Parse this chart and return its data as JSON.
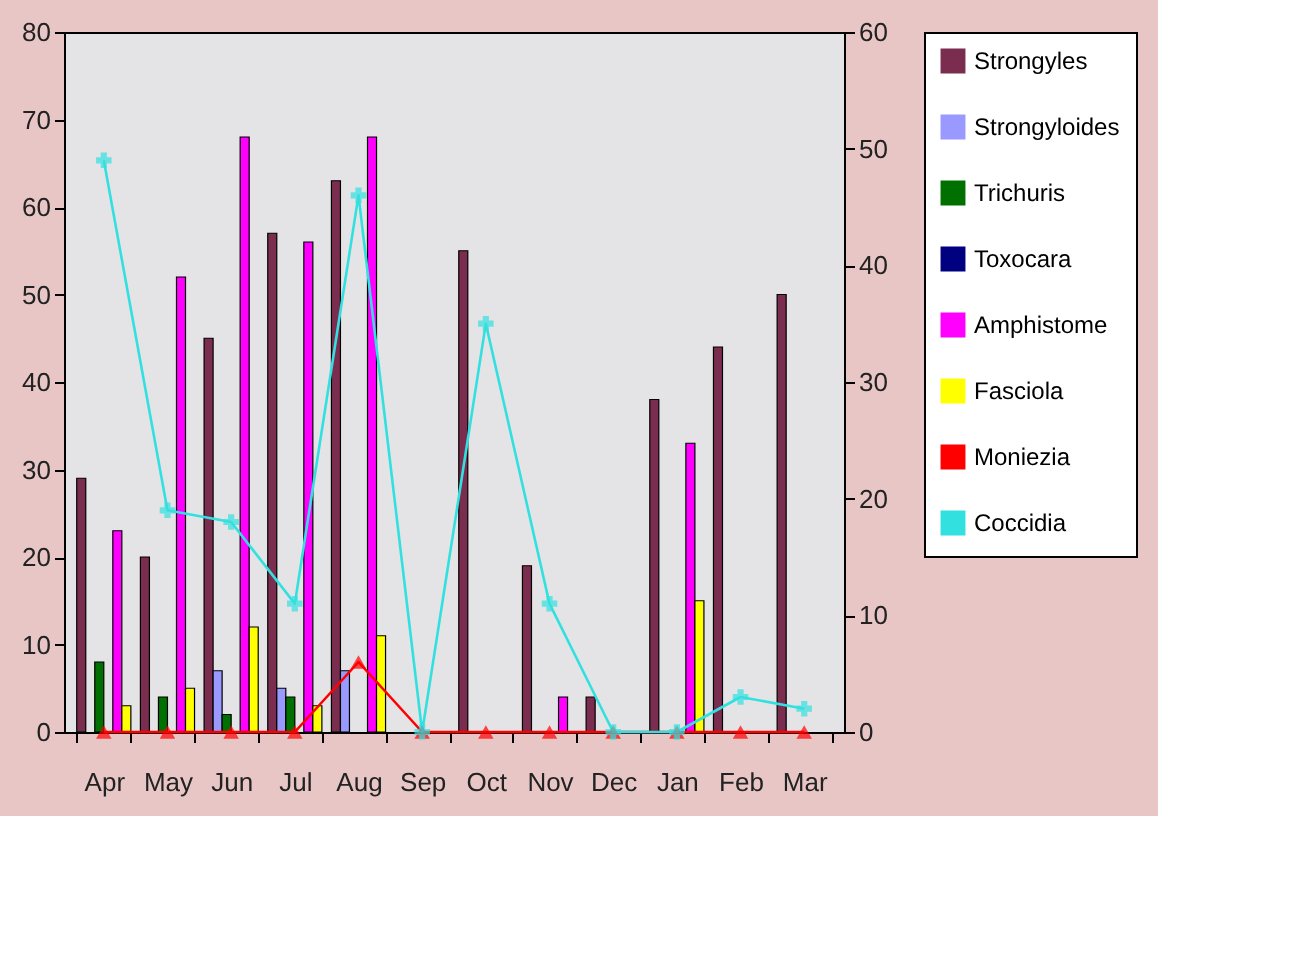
{
  "chart_data": {
    "type": "bar",
    "categories": [
      "Apr",
      "May",
      "Jun",
      "Jul",
      "Aug",
      "Sep",
      "Oct",
      "Nov",
      "Dec",
      "Jan",
      "Feb",
      "Mar"
    ],
    "series": [
      {
        "name": "Strongyles",
        "color": "#7b2d4f",
        "values": [
          29,
          20,
          45,
          57,
          63,
          0,
          55,
          19,
          4,
          38,
          44,
          50
        ]
      },
      {
        "name": "Strongyloides",
        "color": "#9999ff",
        "values": [
          0,
          0,
          7,
          5,
          7,
          0,
          0,
          0,
          0,
          0,
          0,
          0
        ]
      },
      {
        "name": "Trichuris",
        "color": "#007000",
        "values": [
          8,
          4,
          2,
          4,
          0,
          0,
          0,
          0,
          0,
          0,
          0,
          0
        ]
      },
      {
        "name": "Toxocara",
        "color": "#000080",
        "values": [
          0,
          0,
          0,
          0,
          0,
          0,
          0,
          0,
          0,
          0,
          0,
          0
        ]
      },
      {
        "name": "Amphistome",
        "color": "#ff00ff",
        "values": [
          23,
          52,
          68,
          56,
          68,
          0,
          0,
          4,
          0,
          33,
          0,
          0
        ]
      },
      {
        "name": "Fasciola",
        "color": "#ffff00",
        "values": [
          3,
          5,
          12,
          3,
          11,
          0,
          0,
          0,
          0,
          15,
          0,
          0
        ]
      },
      {
        "name": "Moniezia",
        "color": "#ff0000",
        "type": "line",
        "axis": "y2",
        "marker": "triangle",
        "values": [
          0,
          0,
          0,
          0,
          6,
          0,
          0,
          0,
          0,
          0,
          0,
          0
        ]
      },
      {
        "name": "Coccidia",
        "color": "#33e0e0",
        "type": "line",
        "axis": "y2",
        "marker": "cross",
        "values": [
          49,
          19,
          18,
          11,
          46,
          0,
          35,
          11,
          0,
          0,
          3,
          2
        ]
      }
    ],
    "ylim": [
      0,
      80
    ],
    "yticks": [
      0,
      10,
      20,
      30,
      40,
      50,
      60,
      70,
      80
    ],
    "y2lim": [
      0,
      60
    ],
    "y2ticks": [
      0,
      10,
      20,
      30,
      40,
      50,
      60
    ],
    "grid": false,
    "legend": "right"
  }
}
